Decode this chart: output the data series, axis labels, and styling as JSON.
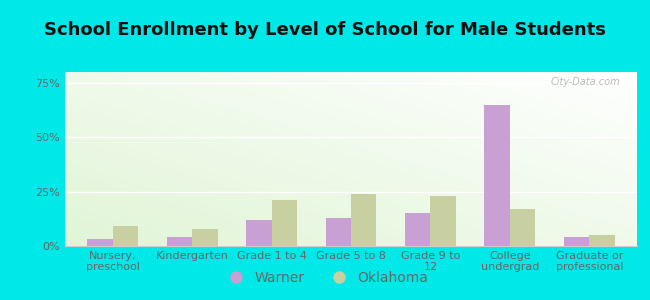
{
  "title": "School Enrollment by Level of School for Male Students",
  "categories": [
    "Nursery,\npreschool",
    "Kindergarten",
    "Grade 1 to 4",
    "Grade 5 to 8",
    "Grade 9 to\n12",
    "College\nundergrad",
    "Graduate or\nprofessional"
  ],
  "warner_values": [
    3,
    4,
    12,
    13,
    15,
    65,
    4
  ],
  "oklahoma_values": [
    9,
    8,
    21,
    24,
    23,
    17,
    5
  ],
  "warner_color": "#c8a0d4",
  "oklahoma_color": "#c8cfa0",
  "bg_color": "#00e8e8",
  "tick_color": "#666666",
  "legend_labels": [
    "Warner",
    "Oklahoma"
  ],
  "ylim": [
    0,
    80
  ],
  "yticks": [
    0,
    25,
    50,
    75
  ],
  "ytick_labels": [
    "0%",
    "25%",
    "50%",
    "75%"
  ],
  "bar_width": 0.32,
  "title_fontsize": 13,
  "tick_fontsize": 8,
  "legend_fontsize": 10,
  "watermark": "City-Data.com"
}
